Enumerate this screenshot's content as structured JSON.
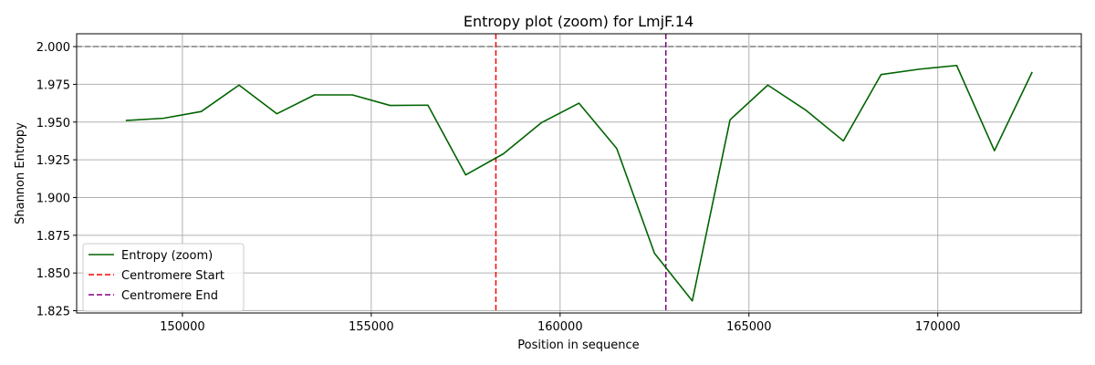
{
  "chart_data": {
    "type": "line",
    "title": "Entropy plot (zoom) for LmjF.14",
    "xlabel": "Position in sequence",
    "ylabel": "Shannon Entropy",
    "xlim": [
      147200,
      173800
    ],
    "ylim": [
      1.8235,
      2.0085
    ],
    "xticks": [
      150000,
      155000,
      160000,
      165000,
      170000
    ],
    "xtick_labels": [
      "150000",
      "155000",
      "160000",
      "165000",
      "170000"
    ],
    "yticks": [
      1.825,
      1.85,
      1.875,
      1.9,
      1.925,
      1.95,
      1.975,
      2.0
    ],
    "ytick_labels": [
      "1.825",
      "1.850",
      "1.875",
      "1.900",
      "1.925",
      "1.950",
      "1.975",
      "2.000"
    ],
    "grid": true,
    "legend_position": "lower-left",
    "series": [
      {
        "name": "Entropy (zoom)",
        "color": "#006400",
        "style": "solid",
        "x": [
          148500,
          149500,
          150500,
          151500,
          152500,
          153500,
          154500,
          155500,
          156500,
          157500,
          158500,
          159500,
          160500,
          161500,
          162500,
          163500,
          164500,
          165500,
          166500,
          167500,
          168500,
          169500,
          170500,
          171500,
          172500
        ],
        "y": [
          1.951,
          1.9525,
          1.957,
          1.9745,
          1.9555,
          1.968,
          1.968,
          1.961,
          1.9612,
          1.915,
          1.929,
          1.9495,
          1.9625,
          1.9325,
          1.863,
          1.8315,
          1.9515,
          1.9745,
          1.958,
          1.9375,
          1.9815,
          1.985,
          1.9875,
          1.931,
          1.9832
        ]
      }
    ],
    "reference_lines": [
      {
        "orientation": "horizontal",
        "value": 2.0,
        "color": "#808080",
        "style": "dashed"
      },
      {
        "name": "Centromere Start",
        "orientation": "vertical",
        "value": 158300,
        "color": "#ff0000",
        "style": "dashed"
      },
      {
        "name": "Centromere End",
        "orientation": "vertical",
        "value": 162800,
        "color": "#800080",
        "style": "dashed"
      }
    ]
  }
}
